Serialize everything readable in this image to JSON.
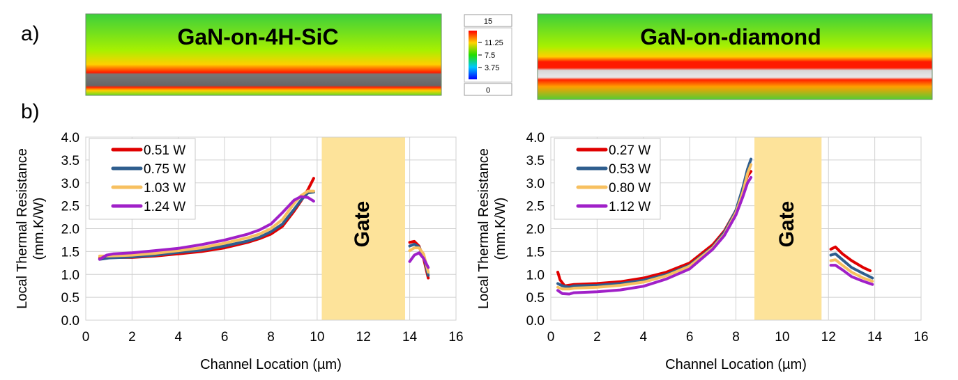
{
  "panels": {
    "a": "a)",
    "b": "b)"
  },
  "thermal_maps": [
    {
      "title": "GaN-on-4H-SiC"
    },
    {
      "title": "GaN-on-diamond"
    }
  ],
  "colorbar": {
    "max": "15",
    "min": "0",
    "ticks": [
      "11.25",
      "7.5",
      "3.75"
    ],
    "colors": [
      "#ff0000",
      "#ffd400",
      "#22dd00",
      "#00c8ff",
      "#0000ff"
    ]
  },
  "chart_data": [
    {
      "type": "line",
      "xlabel": "Channel Location (µm)",
      "ylabel": "Local Thermal Resistance",
      "ylabel2": "(mm.K/W)",
      "xlim": [
        0,
        16
      ],
      "ylim": [
        0,
        4
      ],
      "xticks": [
        "0",
        "2",
        "4",
        "6",
        "8",
        "10",
        "12",
        "14",
        "16"
      ],
      "yticks": [
        "0.0",
        "0.5",
        "1.0",
        "1.5",
        "2.0",
        "2.5",
        "3.0",
        "3.5",
        "4.0"
      ],
      "grid": true,
      "legend_position": "top-left",
      "gate": {
        "label": "Gate",
        "x_start": 10.2,
        "x_end": 13.8,
        "color": "#fde39a"
      },
      "series": [
        {
          "name": "0.51 W",
          "color": "#e00000",
          "segments": [
            {
              "x": [
                0.6,
                1.0,
                2.0,
                3.0,
                4.0,
                5.0,
                6.0,
                7.0,
                7.5,
                8.0,
                8.5,
                9.0,
                9.3,
                9.6,
                9.85
              ],
              "y": [
                1.35,
                1.37,
                1.37,
                1.4,
                1.45,
                1.5,
                1.58,
                1.7,
                1.78,
                1.88,
                2.05,
                2.38,
                2.6,
                2.85,
                3.1
              ]
            },
            {
              "x": [
                14.0,
                14.2,
                14.4,
                14.6,
                14.8
              ],
              "y": [
                1.7,
                1.72,
                1.62,
                1.35,
                0.92
              ]
            }
          ]
        },
        {
          "name": "0.75 W",
          "color": "#2f5e8e",
          "segments": [
            {
              "x": [
                0.6,
                1.0,
                2.0,
                3.0,
                4.0,
                5.0,
                6.0,
                7.0,
                7.5,
                8.0,
                8.5,
                9.0,
                9.3,
                9.6,
                9.85
              ],
              "y": [
                1.33,
                1.36,
                1.38,
                1.42,
                1.48,
                1.53,
                1.62,
                1.73,
                1.81,
                1.93,
                2.1,
                2.42,
                2.62,
                2.78,
                2.8
              ]
            },
            {
              "x": [
                14.0,
                14.2,
                14.4,
                14.6,
                14.8
              ],
              "y": [
                1.62,
                1.66,
                1.6,
                1.4,
                0.98
              ]
            }
          ]
        },
        {
          "name": "1.03 W",
          "color": "#f7c060",
          "segments": [
            {
              "x": [
                0.6,
                1.0,
                2.0,
                3.0,
                4.0,
                5.0,
                6.0,
                7.0,
                7.5,
                8.0,
                8.5,
                9.0,
                9.3,
                9.6,
                9.85
              ],
              "y": [
                1.4,
                1.4,
                1.42,
                1.46,
                1.52,
                1.58,
                1.68,
                1.8,
                1.88,
                2.0,
                2.2,
                2.55,
                2.72,
                2.82,
                2.82
              ]
            },
            {
              "x": [
                14.0,
                14.2,
                14.4,
                14.6,
                14.8
              ],
              "y": [
                1.52,
                1.58,
                1.58,
                1.45,
                1.05
              ]
            }
          ]
        },
        {
          "name": "1.24 W",
          "color": "#a020c8",
          "segments": [
            {
              "x": [
                0.6,
                0.9,
                1.2,
                2.0,
                3.0,
                4.0,
                5.0,
                6.0,
                7.0,
                7.5,
                8.0,
                8.5,
                9.0,
                9.3,
                9.6,
                9.85
              ],
              "y": [
                1.33,
                1.42,
                1.45,
                1.47,
                1.52,
                1.57,
                1.65,
                1.75,
                1.88,
                1.97,
                2.1,
                2.35,
                2.62,
                2.7,
                2.68,
                2.6
              ]
            },
            {
              "x": [
                14.0,
                14.2,
                14.4,
                14.6,
                14.8
              ],
              "y": [
                1.28,
                1.42,
                1.47,
                1.35,
                1.15
              ]
            }
          ]
        }
      ]
    },
    {
      "type": "line",
      "xlabel": "Channel Location (µm)",
      "ylabel": "Local Thermal Resistance",
      "ylabel2": "(mm.K/W)",
      "xlim": [
        0,
        16
      ],
      "ylim": [
        0,
        4
      ],
      "xticks": [
        "0",
        "2",
        "4",
        "6",
        "8",
        "10",
        "12",
        "14",
        "16"
      ],
      "yticks": [
        "0.0",
        "0.5",
        "1.0",
        "1.5",
        "2.0",
        "2.5",
        "3.0",
        "3.5",
        "4.0"
      ],
      "grid": true,
      "legend_position": "top-left",
      "gate": {
        "label": "Gate",
        "x_start": 8.8,
        "x_end": 11.7,
        "color": "#fde39a"
      },
      "series": [
        {
          "name": "0.27 W",
          "color": "#e00000",
          "segments": [
            {
              "x": [
                0.3,
                0.4,
                0.6,
                1.0,
                2.0,
                3.0,
                4.0,
                5.0,
                6.0,
                7.0,
                7.5,
                8.0,
                8.3,
                8.5,
                8.65
              ],
              "y": [
                1.05,
                0.88,
                0.75,
                0.78,
                0.8,
                0.84,
                0.92,
                1.05,
                1.25,
                1.65,
                1.95,
                2.4,
                2.85,
                3.15,
                3.25
              ]
            },
            {
              "x": [
                12.1,
                12.3,
                12.6,
                13.0,
                13.5,
                13.8
              ],
              "y": [
                1.55,
                1.6,
                1.45,
                1.3,
                1.15,
                1.08
              ]
            }
          ]
        },
        {
          "name": "0.53 W",
          "color": "#2f5e8e",
          "segments": [
            {
              "x": [
                0.3,
                0.5,
                0.8,
                1.0,
                2.0,
                3.0,
                4.0,
                5.0,
                6.0,
                7.0,
                7.5,
                8.0,
                8.3,
                8.5,
                8.65
              ],
              "y": [
                0.8,
                0.75,
                0.72,
                0.75,
                0.76,
                0.8,
                0.87,
                1.0,
                1.2,
                1.6,
                1.92,
                2.4,
                2.9,
                3.3,
                3.52
              ]
            },
            {
              "x": [
                12.1,
                12.3,
                12.6,
                13.0,
                13.5,
                13.9
              ],
              "y": [
                1.42,
                1.45,
                1.32,
                1.15,
                1.02,
                0.92
              ]
            }
          ]
        },
        {
          "name": "0.80 W",
          "color": "#f7c060",
          "segments": [
            {
              "x": [
                0.3,
                0.5,
                0.8,
                1.0,
                2.0,
                3.0,
                4.0,
                5.0,
                6.0,
                7.0,
                7.5,
                8.0,
                8.3,
                8.5,
                8.65
              ],
              "y": [
                0.72,
                0.68,
                0.68,
                0.7,
                0.72,
                0.76,
                0.83,
                0.97,
                1.18,
                1.58,
                1.88,
                2.35,
                2.8,
                3.2,
                3.4
              ]
            },
            {
              "x": [
                12.1,
                12.3,
                12.6,
                13.0,
                13.5,
                13.9
              ],
              "y": [
                1.3,
                1.32,
                1.2,
                1.05,
                0.92,
                0.85
              ]
            }
          ]
        },
        {
          "name": "1.12 W",
          "color": "#a020c8",
          "segments": [
            {
              "x": [
                0.3,
                0.5,
                0.8,
                1.0,
                2.0,
                3.0,
                4.0,
                5.0,
                6.0,
                7.0,
                7.5,
                8.0,
                8.3,
                8.5,
                8.65
              ],
              "y": [
                0.65,
                0.58,
                0.57,
                0.6,
                0.62,
                0.66,
                0.74,
                0.9,
                1.12,
                1.55,
                1.85,
                2.3,
                2.7,
                3.0,
                3.12
              ]
            },
            {
              "x": [
                12.1,
                12.3,
                12.6,
                13.0,
                13.5,
                13.9
              ],
              "y": [
                1.2,
                1.2,
                1.1,
                0.95,
                0.85,
                0.78
              ]
            }
          ]
        }
      ]
    }
  ]
}
